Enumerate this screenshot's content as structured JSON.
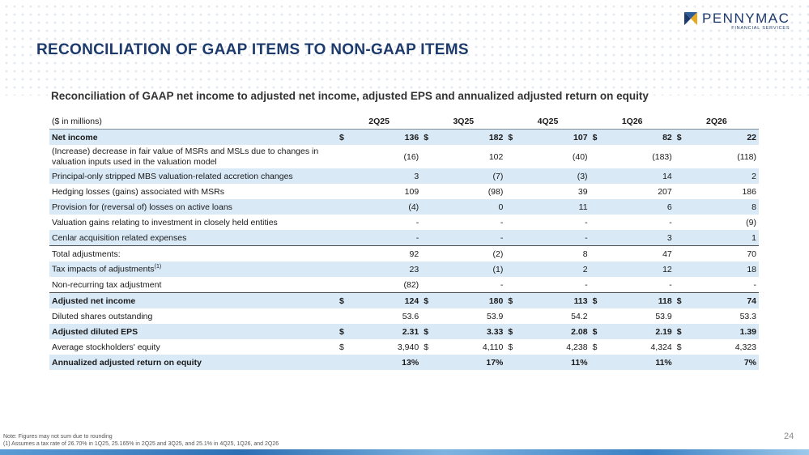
{
  "logo": {
    "name": "PENNYMAC",
    "sub": "FINANCIAL SERVICES"
  },
  "page_title": "RECONCILIATION OF GAAP ITEMS TO NON-GAAP ITEMS",
  "subtitle": "Reconciliation of GAAP net income to adjusted net income, adjusted EPS and annualized adjusted return on equity",
  "table": {
    "unit_label": "($ in millions)",
    "columns": [
      "2Q25",
      "3Q25",
      "4Q25",
      "1Q26",
      "2Q26"
    ],
    "rows": {
      "net_income": {
        "label": "Net income",
        "values": [
          "136",
          "182",
          "107",
          "82",
          "22"
        ]
      },
      "msr_fair_value": {
        "label": "(Increase) decrease in fair value of MSRs and MSLs due to changes in valuation inputs used in the valuation model",
        "values": [
          "(16)",
          "102",
          "(40)",
          "(183)",
          "(118)"
        ]
      },
      "principal_only": {
        "label": "Principal-only stripped MBS valuation-related accretion changes",
        "values": [
          "3",
          "(7)",
          "(3)",
          "14",
          "2"
        ]
      },
      "hedging": {
        "label": "Hedging losses (gains) associated with MSRs",
        "values": [
          "109",
          "(98)",
          "39",
          "207",
          "186"
        ]
      },
      "provision": {
        "label": "Provision for (reversal of) losses on active loans",
        "values": [
          "(4)",
          "0",
          "11",
          "6",
          "8"
        ]
      },
      "valuation_gains": {
        "label": "Valuation gains relating to investment in closely held entities",
        "values": [
          "-",
          "-",
          "-",
          "-",
          "(9)"
        ]
      },
      "cenlar": {
        "label": "Cenlar acquisition related expenses",
        "values": [
          "-",
          "-",
          "-",
          "3",
          "1"
        ]
      },
      "total_adjustments": {
        "label": "Total adjustments:",
        "values": [
          "92",
          "(2)",
          "8",
          "47",
          "70"
        ]
      },
      "tax_impacts": {
        "label": "Tax impacts of adjustments",
        "sup": "(1)",
        "values": [
          "23",
          "(1)",
          "2",
          "12",
          "18"
        ]
      },
      "non_recurring": {
        "label": "Non-recurring tax adjustment",
        "values": [
          "(82)",
          "-",
          "-",
          "-",
          "-"
        ]
      },
      "adjusted_net_income": {
        "label": "Adjusted net income",
        "values": [
          "124",
          "180",
          "113",
          "118",
          "74"
        ]
      },
      "diluted_shares": {
        "label": "Diluted shares outstanding",
        "values": [
          "53.6",
          "53.9",
          "54.2",
          "53.9",
          "53.3"
        ]
      },
      "adjusted_eps": {
        "label": "Adjusted diluted EPS",
        "values": [
          "2.31",
          "3.33",
          "2.08",
          "2.19",
          "1.39"
        ]
      },
      "avg_equity": {
        "label": "Average stockholders' equity",
        "values": [
          "3,940",
          "4,110",
          "4,238",
          "4,324",
          "4,323"
        ]
      },
      "roe": {
        "label": "Annualized adjusted return on equity",
        "values": [
          "13%",
          "17%",
          "11%",
          "11%",
          "7%"
        ]
      }
    },
    "currency_symbol": "$"
  },
  "footnotes": {
    "note": "Note: Figures may not sum due to rounding",
    "note1": "(1) Assumes a tax rate of 26.70% in 1Q25, 25.165% in 2Q25 and 3Q25, and 25.1% in 4Q25, 1Q26, and 2Q26"
  },
  "page_number": "24",
  "colors": {
    "brand": "#1c3a6b",
    "shade": "#d9e9f6",
    "logo_gold": "#e8a820"
  }
}
